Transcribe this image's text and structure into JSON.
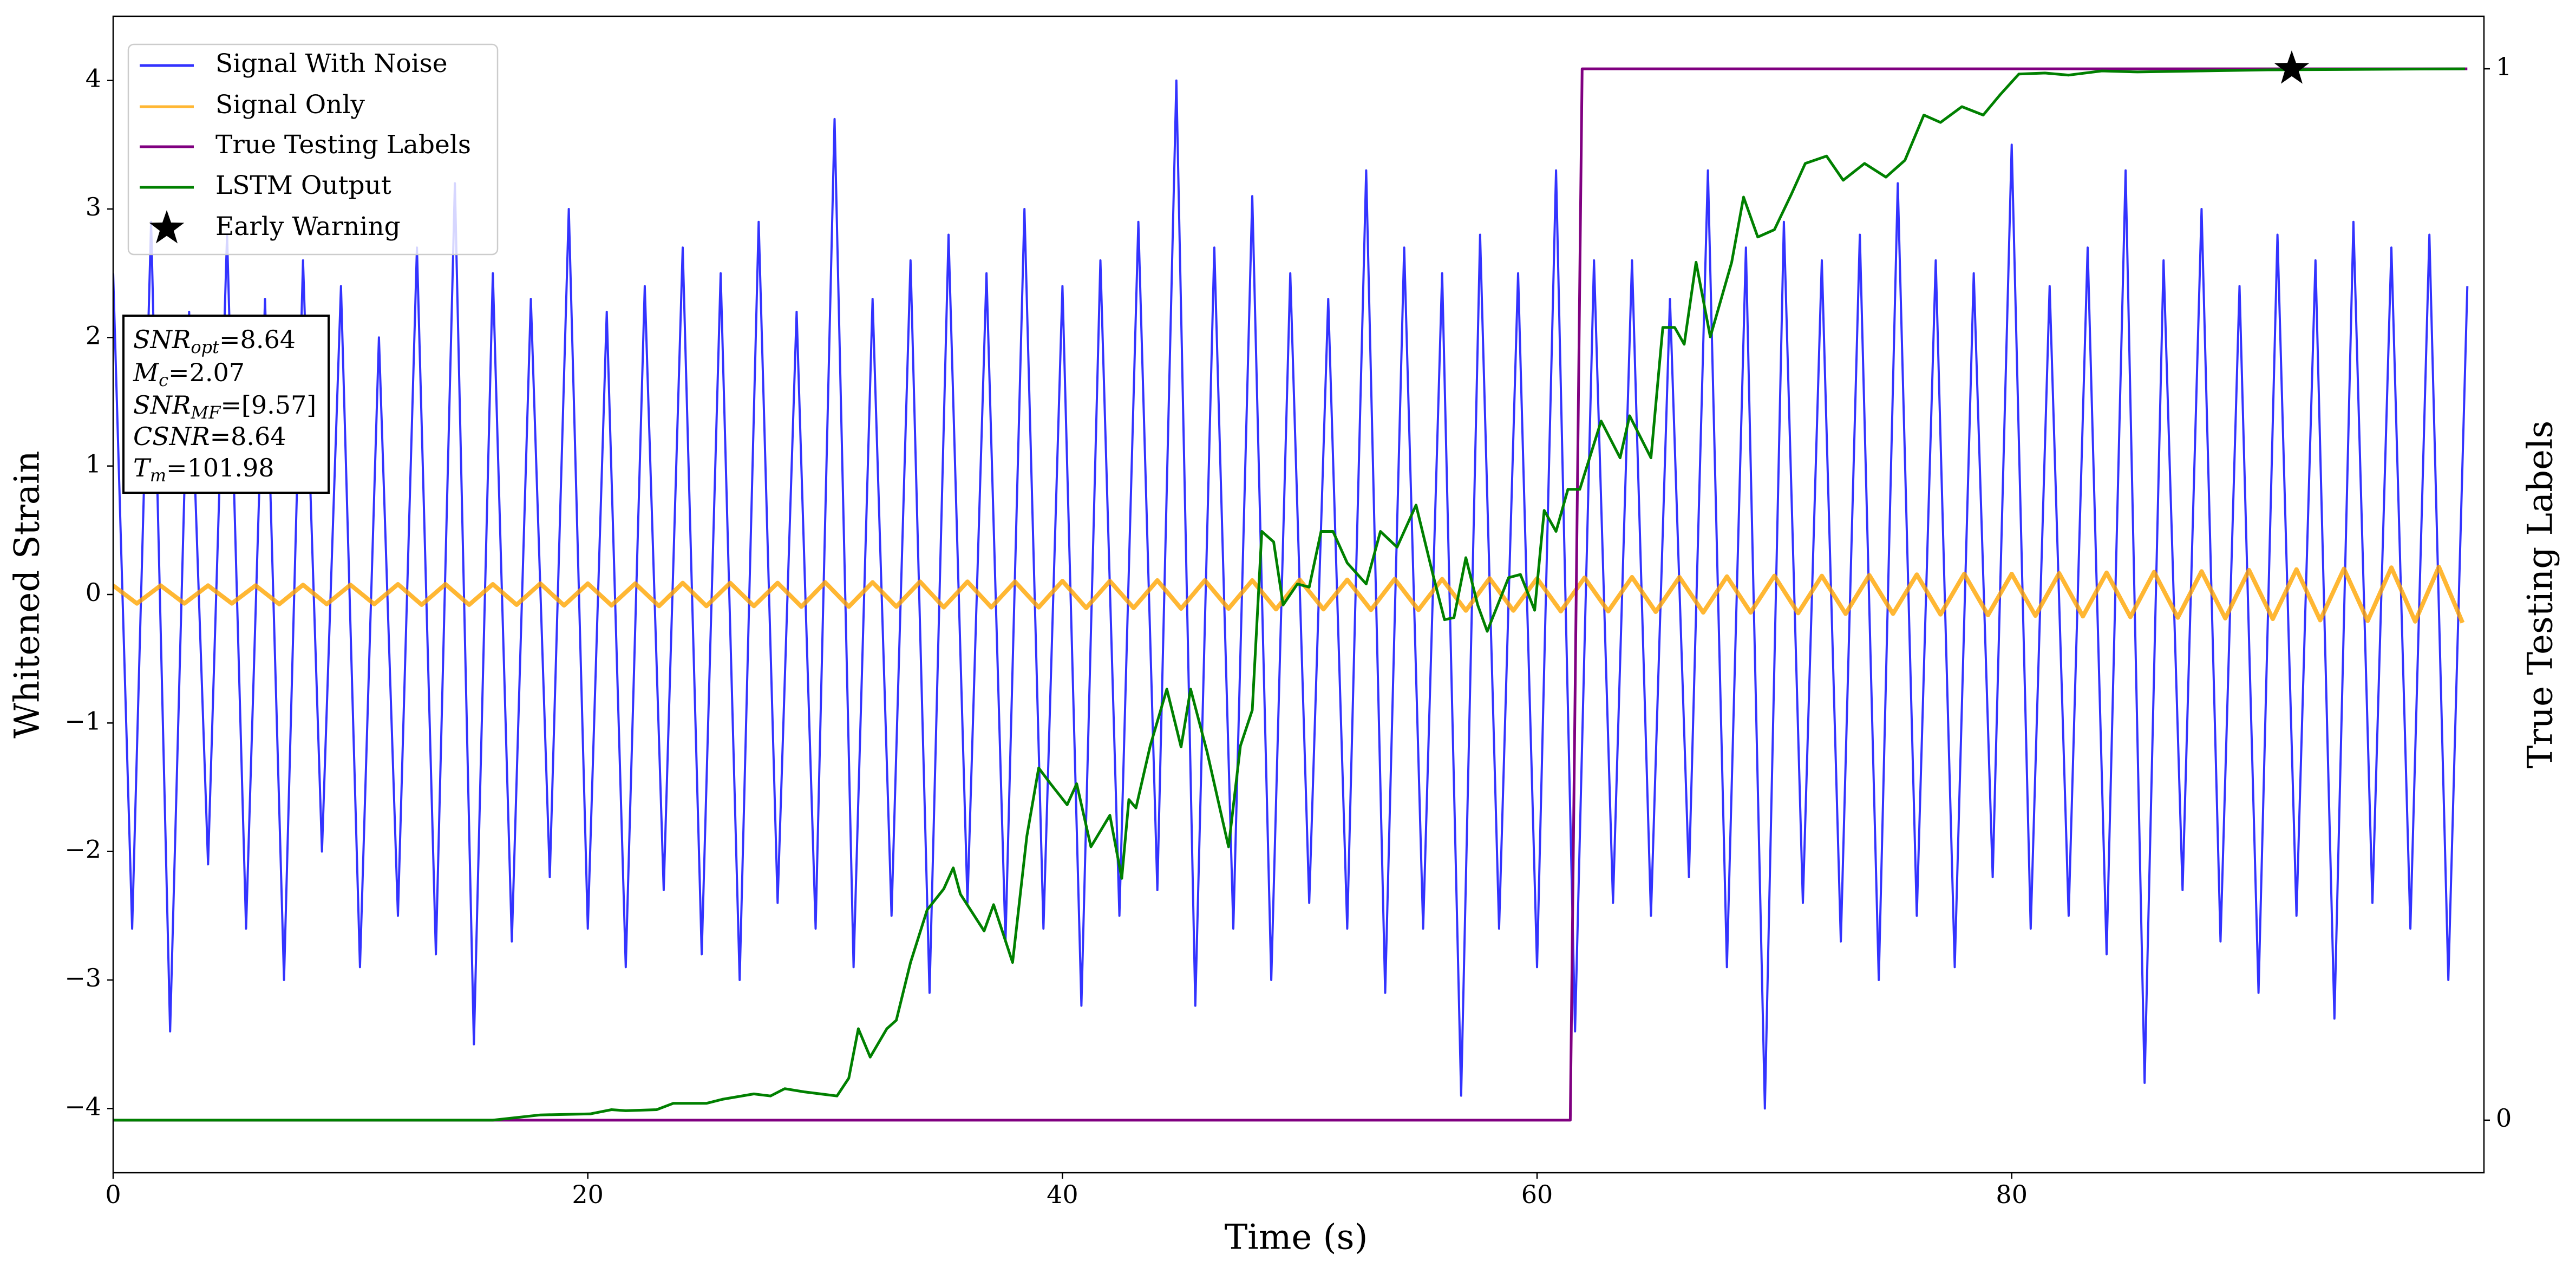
{
  "chart_data": {
    "type": "line",
    "xlabel": "Time (s)",
    "ylabel": "Whitened Strain",
    "y2label": "True Testing Labels",
    "xlim": [
      0,
      99.9
    ],
    "ylim": [
      -4.5,
      4.5
    ],
    "y2lim": [
      -0.05,
      1.05
    ],
    "xticks": [
      0,
      20,
      40,
      60,
      80
    ],
    "yticks": [
      {
        "value": -4,
        "label": "−4"
      },
      {
        "value": -3,
        "label": "−3"
      },
      {
        "value": -2,
        "label": "−2"
      },
      {
        "value": -1,
        "label": "−1"
      },
      0,
      1,
      2,
      3,
      4
    ],
    "y2ticks": [
      0,
      1
    ],
    "legend": "upper left",
    "annotations": [
      {
        "symbol": "SNR",
        "subscript": "opt",
        "text": "=8.64"
      },
      {
        "symbol": "M",
        "subscript": "c",
        "text": "=2.07"
      },
      {
        "symbol": "SNR",
        "subscript": "MF",
        "text": "=[9.57]"
      },
      {
        "symbol": "CSNR",
        "text": "=8.64"
      },
      {
        "symbol": "T",
        "subscript": "m",
        "text": "=101.98"
      }
    ],
    "series": [
      {
        "name": "Signal With Noise",
        "color": "#0000ff",
        "alpha": 0.8,
        "axis": "y",
        "x": [
          0,
          0.8,
          1.6,
          2.4,
          3.2,
          4,
          4.8,
          5.6,
          6.4,
          7.2,
          8,
          8.8,
          9.6,
          10.4,
          11.2,
          12,
          12.8,
          13.6,
          14.4,
          15.2,
          16,
          16.8,
          17.6,
          18.4,
          19.2,
          20,
          20.8,
          21.6,
          22.4,
          23.2,
          24,
          24.8,
          25.6,
          26.4,
          27.2,
          28,
          28.8,
          29.6,
          30.4,
          31.2,
          32,
          32.8,
          33.6,
          34.4,
          35.2,
          36,
          36.8,
          37.6,
          38.4,
          39.2,
          40,
          40.8,
          41.6,
          42.4,
          43.2,
          44,
          44.8,
          45.6,
          46.4,
          47.2,
          48,
          48.8,
          49.6,
          50.4,
          51.2,
          52,
          52.8,
          53.6,
          54.4,
          55.2,
          56,
          56.8,
          57.6,
          58.4,
          59.2,
          60,
          60.8,
          61.6,
          62.4,
          63.2,
          64,
          64.8,
          65.6,
          66.4,
          67.2,
          68,
          68.8,
          69.6,
          70.4,
          71.2,
          72,
          72.8,
          73.6,
          74.4,
          75.2,
          76,
          76.8,
          77.6,
          78.4,
          79.2,
          80,
          80.8,
          81.6,
          82.4,
          83.2,
          84,
          84.8,
          85.6,
          86.4,
          87.2,
          88,
          88.8,
          89.6,
          90.4,
          91.2,
          92,
          92.8,
          93.6,
          94.4,
          95.2,
          96,
          96.8,
          97.6,
          98.4,
          99.2
        ],
        "values": [
          2.5,
          -2.6,
          2.9,
          -3.4,
          2.2,
          -2.1,
          2.8,
          -2.6,
          2.3,
          -3.0,
          2.6,
          -2.0,
          2.4,
          -2.9,
          2.0,
          -2.5,
          2.7,
          -2.8,
          3.2,
          -3.5,
          2.5,
          -2.7,
          2.3,
          -2.2,
          3.0,
          -2.6,
          2.2,
          -2.9,
          2.4,
          -2.3,
          2.7,
          -2.8,
          2.5,
          -3.0,
          2.9,
          -2.4,
          2.2,
          -2.6,
          3.7,
          -2.9,
          2.3,
          -2.5,
          2.6,
          -3.1,
          2.8,
          -2.4,
          2.5,
          -2.7,
          3.0,
          -2.6,
          2.4,
          -3.2,
          2.6,
          -2.5,
          2.9,
          -2.3,
          4.0,
          -3.2,
          2.7,
          -2.6,
          3.1,
          -3.0,
          2.5,
          -2.4,
          2.3,
          -2.6,
          3.3,
          -3.1,
          2.7,
          -2.6,
          2.5,
          -3.9,
          2.8,
          -2.6,
          2.5,
          -2.9,
          3.3,
          -3.4,
          2.6,
          -2.4,
          2.6,
          -2.5,
          2.3,
          -2.2,
          3.3,
          -2.9,
          2.7,
          -4.0,
          2.9,
          -2.4,
          2.6,
          -2.7,
          2.8,
          -3.0,
          3.2,
          -2.5,
          2.6,
          -2.9,
          2.5,
          -2.2,
          3.5,
          -2.6,
          2.4,
          -2.5,
          2.7,
          -2.8,
          3.3,
          -3.8,
          2.6,
          -2.3,
          3.0,
          -2.7,
          2.4,
          -3.1,
          2.8,
          -2.5,
          2.6,
          -3.3,
          2.9,
          -2.4,
          2.7,
          -2.6,
          2.8,
          -3.0,
          2.4
        ]
      },
      {
        "name": "Signal Only",
        "color": "#ffa500",
        "alpha": 0.8,
        "axis": "y",
        "x": [
          0,
          1,
          2,
          3,
          4,
          5,
          6,
          7,
          8,
          9,
          10,
          11,
          12,
          13,
          14,
          15,
          16,
          17,
          18,
          19,
          20,
          21,
          22,
          23,
          24,
          25,
          26,
          27,
          28,
          29,
          30,
          31,
          32,
          33,
          34,
          35,
          36,
          37,
          38,
          39,
          40,
          41,
          42,
          43,
          44,
          45,
          46,
          47,
          48,
          49,
          50,
          51,
          52,
          53,
          54,
          55,
          56,
          57,
          58,
          59,
          60,
          61,
          62,
          63,
          64,
          65,
          66,
          67,
          68,
          69,
          70,
          71,
          72,
          73,
          74,
          75,
          76,
          77,
          78,
          79,
          80,
          81,
          82,
          83,
          84,
          85,
          86,
          87,
          88,
          89,
          90,
          91,
          92,
          93,
          94,
          95,
          96,
          97,
          98,
          99
        ],
        "values": [
          0.07,
          -0.07,
          0.07,
          -0.07,
          0.07,
          -0.07,
          0.07,
          -0.075,
          0.075,
          -0.075,
          0.075,
          -0.075,
          0.08,
          -0.08,
          0.08,
          -0.08,
          0.08,
          -0.08,
          0.085,
          -0.085,
          0.085,
          -0.085,
          0.085,
          -0.09,
          0.09,
          -0.09,
          0.09,
          -0.09,
          0.09,
          -0.095,
          0.095,
          -0.095,
          0.095,
          -0.095,
          0.1,
          -0.1,
          0.1,
          -0.1,
          0.1,
          -0.1,
          0.105,
          -0.105,
          0.105,
          -0.105,
          0.11,
          -0.11,
          0.11,
          -0.11,
          0.11,
          -0.115,
          0.115,
          -0.115,
          0.115,
          -0.12,
          0.12,
          -0.12,
          0.12,
          -0.125,
          0.125,
          -0.125,
          0.125,
          -0.13,
          0.13,
          -0.13,
          0.135,
          -0.135,
          0.135,
          -0.14,
          0.14,
          -0.14,
          0.145,
          -0.145,
          0.145,
          -0.15,
          0.15,
          -0.15,
          0.155,
          -0.155,
          0.16,
          -0.16,
          0.16,
          -0.165,
          0.165,
          -0.17,
          0.17,
          -0.175,
          0.175,
          -0.18,
          0.18,
          -0.185,
          0.19,
          -0.19,
          0.195,
          -0.2,
          0.2,
          -0.205,
          0.21,
          -0.21,
          0.215,
          -0.22
        ]
      },
      {
        "name": "True Testing Labels",
        "color": "#800080",
        "axis": "y2",
        "x": [
          0,
          61.4,
          61.9,
          99.2
        ],
        "values": [
          0,
          0,
          1,
          1
        ]
      },
      {
        "name": "LSTM Output",
        "color": "#008000",
        "axis": "y2",
        "x": [
          0,
          16,
          18,
          20.1,
          21,
          21.6,
          22.9,
          23.6,
          25,
          25.7,
          27,
          27.7,
          28.3,
          29.1,
          30.5,
          31,
          31.4,
          31.9,
          32.6,
          33,
          33.6,
          34.3,
          35,
          35.4,
          35.7,
          36.7,
          37.1,
          37.9,
          38.5,
          39,
          39.5,
          40.2,
          40.6,
          41.2,
          42,
          42.5,
          42.8,
          43.1,
          43.7,
          44.4,
          45,
          45.4,
          46.1,
          47,
          47.5,
          48,
          48.4,
          48.9,
          49.3,
          49.9,
          50.4,
          50.9,
          51.4,
          52,
          52.8,
          53.4,
          54.1,
          54.9,
          55.6,
          56.1,
          56.5,
          57,
          57.5,
          57.9,
          58.8,
          59.3,
          59.9,
          60.3,
          60.8,
          61.3,
          61.8,
          62.7,
          63.5,
          63.9,
          64.8,
          65.3,
          65.8,
          66.2,
          66.7,
          67.3,
          68.2,
          68.7,
          69.3,
          70,
          70.7,
          71.3,
          72.2,
          72.9,
          73.8,
          74.7,
          75.5,
          76.3,
          77,
          77.9,
          78.8,
          79.5,
          80.3,
          81.4,
          82.4,
          83.8,
          85.3,
          88,
          90.8,
          99.1
        ],
        "values": [
          0,
          0,
          0.005,
          0.006,
          0.01,
          0.009,
          0.01,
          0.016,
          0.016,
          0.02,
          0.025,
          0.023,
          0.03,
          0.027,
          0.023,
          0.04,
          0.087,
          0.06,
          0.087,
          0.095,
          0.15,
          0.2,
          0.22,
          0.24,
          0.215,
          0.18,
          0.205,
          0.15,
          0.27,
          0.335,
          0.32,
          0.3,
          0.32,
          0.26,
          0.29,
          0.23,
          0.305,
          0.297,
          0.356,
          0.41,
          0.355,
          0.41,
          0.35,
          0.26,
          0.356,
          0.39,
          0.56,
          0.55,
          0.49,
          0.51,
          0.507,
          0.56,
          0.56,
          0.53,
          0.51,
          0.56,
          0.545,
          0.585,
          0.52,
          0.476,
          0.478,
          0.535,
          0.49,
          0.465,
          0.516,
          0.519,
          0.485,
          0.58,
          0.56,
          0.6,
          0.6,
          0.665,
          0.63,
          0.67,
          0.63,
          0.754,
          0.754,
          0.738,
          0.816,
          0.745,
          0.816,
          0.878,
          0.84,
          0.847,
          0.88,
          0.91,
          0.917,
          0.894,
          0.91,
          0.897,
          0.913,
          0.956,
          0.949,
          0.964,
          0.956,
          0.975,
          0.995,
          0.996,
          0.994,
          0.998,
          0.997,
          0.998,
          0.999,
          1.0
        ]
      },
      {
        "name": "Early Warning",
        "color": "#000000",
        "axis": "y2",
        "marker": "star",
        "x": [
          91.8
        ],
        "values": [
          1.0
        ]
      }
    ]
  }
}
